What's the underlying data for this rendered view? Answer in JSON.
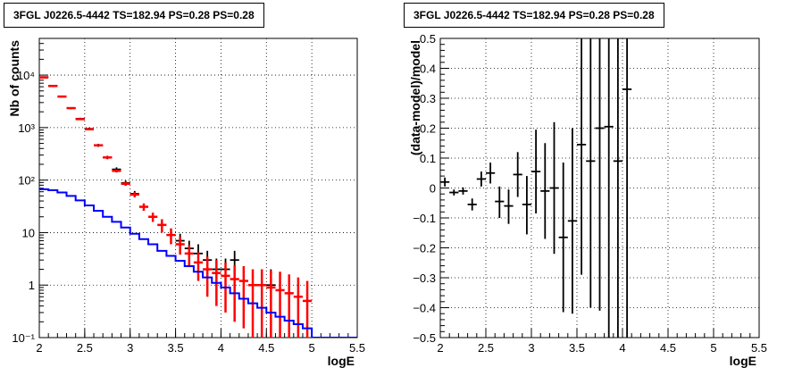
{
  "colors": {
    "data": "#000000",
    "model": "#ff0000",
    "background_component": "#0000ff",
    "grid": "#000000"
  },
  "chart_data": [
    {
      "type": "line",
      "title": "3FGL J0226.5-4442 TS=182.94 PS=0.28 PS=0.28",
      "xlabel": "logE",
      "ylabel": "Nb of counts",
      "xlim": [
        2,
        5.5
      ],
      "ylim": [
        0.1,
        50000
      ],
      "yscale": "log",
      "grid": true,
      "x_ticks": [
        "2",
        "2.5",
        "3",
        "3.5",
        "4",
        "4.5",
        "5",
        "5.5"
      ],
      "y_ticks": [
        "10⁻¹",
        "1",
        "10",
        "10²",
        "10³",
        "10⁴"
      ],
      "series": [
        {
          "role": "data",
          "style": "points-with-error-bars",
          "color": "#000000",
          "points": [
            {
              "x": 2.05,
              "y": 9200,
              "lo": 9000,
              "hi": 9400
            },
            {
              "x": 2.15,
              "y": 6300,
              "lo": 6100,
              "hi": 6500
            },
            {
              "x": 2.35,
              "y": 2350,
              "lo": 2250,
              "hi": 2450
            },
            {
              "x": 2.45,
              "y": 1480,
              "lo": 1420,
              "hi": 1540
            },
            {
              "x": 2.55,
              "y": 950,
              "lo": 900,
              "hi": 1000
            },
            {
              "x": 2.65,
              "y": 460,
              "lo": 430,
              "hi": 490
            },
            {
              "x": 2.75,
              "y": 270,
              "lo": 250,
              "hi": 290
            },
            {
              "x": 2.85,
              "y": 160,
              "lo": 145,
              "hi": 175
            },
            {
              "x": 2.95,
              "y": 88,
              "lo": 78,
              "hi": 98
            },
            {
              "x": 3.05,
              "y": 55,
              "lo": 48,
              "hi": 62
            },
            {
              "x": 3.45,
              "y": 9,
              "lo": 6,
              "hi": 12
            },
            {
              "x": 3.55,
              "y": 7,
              "lo": 4.5,
              "hi": 9.5
            },
            {
              "x": 3.65,
              "y": 5,
              "lo": 3,
              "hi": 7
            },
            {
              "x": 3.75,
              "y": 4,
              "lo": 2,
              "hi": 6
            },
            {
              "x": 3.85,
              "y": 3,
              "lo": 1.5,
              "hi": 4.5
            },
            {
              "x": 3.95,
              "y": 2,
              "lo": 0.8,
              "hi": 3.2
            },
            {
              "x": 4.05,
              "y": 2,
              "lo": 0.8,
              "hi": 3.2
            },
            {
              "x": 4.15,
              "y": 3,
              "lo": 1.5,
              "hi": 4.5
            },
            {
              "x": 4.35,
              "y": 1,
              "lo": 0.2,
              "hi": 2.0
            },
            {
              "x": 4.45,
              "y": 1,
              "lo": 0.2,
              "hi": 2.0
            },
            {
              "x": 4.55,
              "y": 1,
              "lo": 0.2,
              "hi": 2.0
            }
          ]
        },
        {
          "role": "model",
          "style": "points-with-error-bars",
          "color": "#ff0000",
          "points": [
            {
              "x": 2.05,
              "y": 9000,
              "lo": 8700,
              "hi": 9300
            },
            {
              "x": 2.15,
              "y": 6200,
              "lo": 6000,
              "hi": 6400
            },
            {
              "x": 2.25,
              "y": 3900,
              "lo": 3750,
              "hi": 4050
            },
            {
              "x": 2.35,
              "y": 2350,
              "lo": 2250,
              "hi": 2450
            },
            {
              "x": 2.45,
              "y": 1450,
              "lo": 1400,
              "hi": 1500
            },
            {
              "x": 2.55,
              "y": 930,
              "lo": 890,
              "hi": 970
            },
            {
              "x": 2.65,
              "y": 460,
              "lo": 440,
              "hi": 480
            },
            {
              "x": 2.75,
              "y": 270,
              "lo": 255,
              "hi": 285
            },
            {
              "x": 2.85,
              "y": 150,
              "lo": 140,
              "hi": 160
            },
            {
              "x": 2.95,
              "y": 85,
              "lo": 78,
              "hi": 92
            },
            {
              "x": 3.05,
              "y": 53,
              "lo": 47,
              "hi": 59
            },
            {
              "x": 3.15,
              "y": 31,
              "lo": 26,
              "hi": 36
            },
            {
              "x": 3.25,
              "y": 20,
              "lo": 16,
              "hi": 24
            },
            {
              "x": 3.35,
              "y": 14,
              "lo": 10,
              "hi": 18
            },
            {
              "x": 3.45,
              "y": 9,
              "lo": 6,
              "hi": 12
            },
            {
              "x": 3.55,
              "y": 6,
              "lo": 3.8,
              "hi": 8.3
            },
            {
              "x": 3.65,
              "y": 4,
              "lo": 2.2,
              "hi": 5.8
            },
            {
              "x": 3.75,
              "y": 2.7,
              "lo": 1.2,
              "hi": 4.2
            },
            {
              "x": 3.85,
              "y": 2,
              "lo": 0.6,
              "hi": 3.5
            },
            {
              "x": 3.95,
              "y": 1.7,
              "lo": 0.4,
              "hi": 3.0
            },
            {
              "x": 4.05,
              "y": 1.5,
              "lo": 0.3,
              "hi": 2.7
            },
            {
              "x": 4.15,
              "y": 1.3,
              "lo": 0.2,
              "hi": 2.4
            },
            {
              "x": 4.25,
              "y": 1.2,
              "lo": 0.15,
              "hi": 2.3
            },
            {
              "x": 4.35,
              "y": 1.0,
              "lo": 0.1,
              "hi": 2.0
            },
            {
              "x": 4.45,
              "y": 1.0,
              "lo": 0.1,
              "hi": 2.0
            },
            {
              "x": 4.55,
              "y": 0.9,
              "lo": 0.1,
              "hi": 1.9
            },
            {
              "x": 4.65,
              "y": 0.8,
              "lo": 0.1,
              "hi": 1.8
            },
            {
              "x": 4.75,
              "y": 0.7,
              "lo": 0.1,
              "hi": 1.6
            },
            {
              "x": 4.85,
              "y": 0.6,
              "lo": 0.1,
              "hi": 1.4
            },
            {
              "x": 4.95,
              "y": 0.5,
              "lo": 0.1,
              "hi": 1.2
            }
          ]
        },
        {
          "role": "background_component",
          "style": "step-histogram",
          "color": "#0000ff",
          "bin_width": 0.1,
          "bins": [
            {
              "x": 2.05,
              "y": 67
            },
            {
              "x": 2.15,
              "y": 64
            },
            {
              "x": 2.25,
              "y": 58
            },
            {
              "x": 2.35,
              "y": 50
            },
            {
              "x": 2.45,
              "y": 41
            },
            {
              "x": 2.55,
              "y": 33
            },
            {
              "x": 2.65,
              "y": 26
            },
            {
              "x": 2.75,
              "y": 20
            },
            {
              "x": 2.85,
              "y": 16
            },
            {
              "x": 2.95,
              "y": 12.5
            },
            {
              "x": 3.05,
              "y": 9.5
            },
            {
              "x": 3.15,
              "y": 7.5
            },
            {
              "x": 3.25,
              "y": 6
            },
            {
              "x": 3.35,
              "y": 4.5
            },
            {
              "x": 3.45,
              "y": 3.6
            },
            {
              "x": 3.55,
              "y": 2.9
            },
            {
              "x": 3.65,
              "y": 2.3
            },
            {
              "x": 3.75,
              "y": 1.8
            },
            {
              "x": 3.85,
              "y": 1.4
            },
            {
              "x": 3.95,
              "y": 1.1
            },
            {
              "x": 4.05,
              "y": 0.9
            },
            {
              "x": 4.15,
              "y": 0.7
            },
            {
              "x": 4.25,
              "y": 0.55
            },
            {
              "x": 4.35,
              "y": 0.45
            },
            {
              "x": 4.45,
              "y": 0.37
            },
            {
              "x": 4.55,
              "y": 0.3
            },
            {
              "x": 4.65,
              "y": 0.25
            },
            {
              "x": 4.75,
              "y": 0.21
            },
            {
              "x": 4.85,
              "y": 0.18
            },
            {
              "x": 4.95,
              "y": 0.15
            },
            {
              "x": 5.05,
              "y": 0.1
            },
            {
              "x": 5.15,
              "y": 0.1
            },
            {
              "x": 5.25,
              "y": 0.1
            },
            {
              "x": 5.35,
              "y": 0.1
            },
            {
              "x": 5.45,
              "y": 0.1
            }
          ]
        }
      ]
    },
    {
      "type": "scatter",
      "title": "3FGL J0226.5-4442 TS=182.94 PS=0.28 PS=0.28",
      "xlabel": "logE",
      "ylabel": "(data-model)/model",
      "xlim": [
        2,
        5.5
      ],
      "ylim": [
        -0.5,
        0.5
      ],
      "yscale": "linear",
      "grid": true,
      "x_ticks": [
        "2",
        "2.5",
        "3",
        "3.5",
        "4",
        "4.5",
        "5",
        "5.5"
      ],
      "y_ticks": [
        "−0.5",
        "−0.4",
        "−0.3",
        "−0.2",
        "−0.1",
        "0",
        "0.1",
        "0.2",
        "0.3",
        "0.4",
        "0.5"
      ],
      "series": [
        {
          "role": "residuals",
          "style": "points-with-error-bars",
          "color": "#000000",
          "points": [
            {
              "x": 2.05,
              "y": 0.02,
              "lo": 0.005,
              "hi": 0.035
            },
            {
              "x": 2.15,
              "y": -0.015,
              "lo": -0.025,
              "hi": -0.005
            },
            {
              "x": 2.25,
              "y": -0.01,
              "lo": -0.022,
              "hi": 0.002
            },
            {
              "x": 2.35,
              "y": -0.055,
              "lo": -0.075,
              "hi": -0.035
            },
            {
              "x": 2.45,
              "y": 0.03,
              "lo": 0.005,
              "hi": 0.055
            },
            {
              "x": 2.55,
              "y": 0.05,
              "lo": 0.015,
              "hi": 0.085
            },
            {
              "x": 2.65,
              "y": -0.045,
              "lo": -0.1,
              "hi": 0.005
            },
            {
              "x": 2.75,
              "y": -0.06,
              "lo": -0.12,
              "hi": -0.005
            },
            {
              "x": 2.85,
              "y": 0.045,
              "lo": -0.03,
              "hi": 0.12
            },
            {
              "x": 2.95,
              "y": -0.055,
              "lo": -0.155,
              "hi": 0.04
            },
            {
              "x": 3.05,
              "y": 0.055,
              "lo": -0.085,
              "hi": 0.195
            },
            {
              "x": 3.15,
              "y": -0.01,
              "lo": -0.17,
              "hi": 0.15
            },
            {
              "x": 3.25,
              "y": 0.0,
              "lo": -0.22,
              "hi": 0.22
            },
            {
              "x": 3.35,
              "y": -0.165,
              "lo": -0.415,
              "hi": 0.085
            },
            {
              "x": 3.45,
              "y": -0.11,
              "lo": -0.42,
              "hi": 0.2
            },
            {
              "x": 3.55,
              "y": 0.145,
              "lo": -0.29,
              "hi": 0.5
            },
            {
              "x": 3.65,
              "y": 0.09,
              "lo": -0.4,
              "hi": 0.5
            },
            {
              "x": 3.75,
              "y": 0.2,
              "lo": -0.41,
              "hi": 0.5
            },
            {
              "x": 3.85,
              "y": 0.205,
              "lo": -0.5,
              "hi": 0.5
            },
            {
              "x": 3.95,
              "y": 0.09,
              "lo": -0.5,
              "hi": 0.5
            },
            {
              "x": 4.05,
              "y": 0.33,
              "lo": -0.5,
              "hi": 0.5
            }
          ]
        }
      ]
    }
  ]
}
